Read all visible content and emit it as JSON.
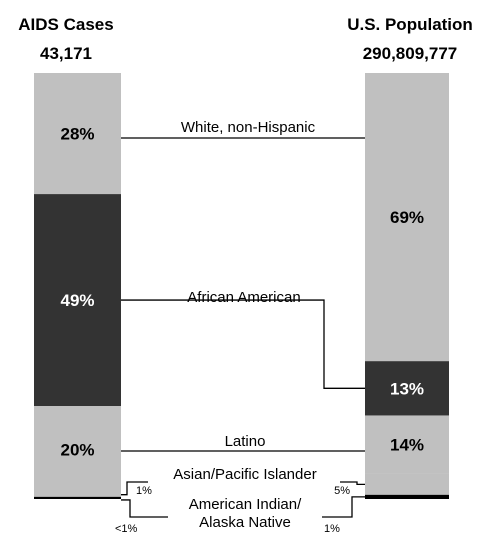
{
  "chart_data": {
    "type": "bar",
    "layout": "two stacked 100% columns with connector lines",
    "columns": [
      {
        "title": "AIDS Cases",
        "total": "43,171",
        "segments": [
          {
            "category": "White, non-Hispanic",
            "value": 28,
            "label": "28%",
            "color": "#c0c0c0"
          },
          {
            "category": "African American",
            "value": 49,
            "label": "49%",
            "color": "#333333"
          },
          {
            "category": "Latino",
            "value": 20,
            "label": "20%",
            "color": "#c0c0c0"
          },
          {
            "category": "Asian/Pacific Islander",
            "value": 1,
            "label": "1%",
            "color": "#c0c0c0"
          },
          {
            "category": "American Indian/Alaska Native",
            "value": 0.5,
            "label": "<1%",
            "color": "#000000"
          }
        ]
      },
      {
        "title": "U.S. Population",
        "total": "290,809,777",
        "segments": [
          {
            "category": "White, non-Hispanic",
            "value": 69,
            "label": "69%",
            "color": "#c0c0c0"
          },
          {
            "category": "African American",
            "value": 13,
            "label": "13%",
            "color": "#333333"
          },
          {
            "category": "Latino",
            "value": 14,
            "label": "14%",
            "color": "#c0c0c0"
          },
          {
            "category": "Asian/Pacific Islander",
            "value": 5,
            "label": "5%",
            "color": "#c0c0c0"
          },
          {
            "category": "American Indian/Alaska Native",
            "value": 1,
            "label": "1%",
            "color": "#000000"
          }
        ]
      }
    ],
    "category_labels": {
      "white": "White, non-Hispanic",
      "african_american": "African American",
      "latino": "Latino",
      "asian": "Asian/Pacific Islander",
      "american_indian_line1": "American Indian/",
      "american_indian_line2": "Alaska Native"
    }
  }
}
